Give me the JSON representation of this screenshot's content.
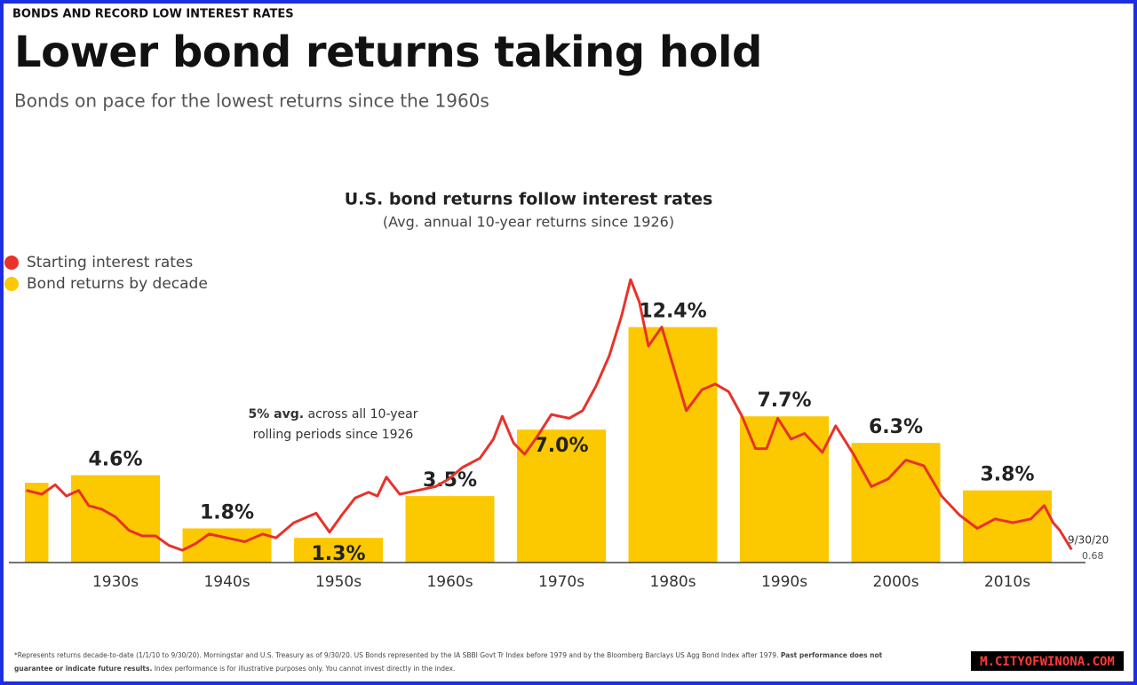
{
  "page": {
    "kicker": "BONDS AND RECORD LOW INTEREST RATES",
    "title": "Lower bond returns taking hold",
    "subtitle": "Bonds on pace for the lowest returns since the 1960s",
    "footnote": [
      "*Represents returns decade-to-date (1/1/10 to 9/30/20).  Morningstar and U.S. Treasury as of 9/30/20. US Bonds represented by the IA SBBI Govt Tr Index before 1979 and by the Bloomberg Barclays US Agg Bond Index after 1979.",
      "Past performance does not",
      "guarantee or indicate future results.",
      "Index performance is for illustrative purposes only. You cannot invest directly in the index."
    ],
    "watermark": "M.CITYOFWINONA.COM"
  },
  "chart_data": [
    {
      "type": "bar",
      "title": "U.S. bond returns follow interest rates",
      "subtitle": "(Avg. annual 10-year returns since 1926)",
      "categories": [
        null,
        "1930s",
        "1940s",
        "1950s",
        "1960s",
        "1970s",
        "1980s",
        "1990s",
        "2000s",
        "2010s"
      ],
      "series": [
        {
          "name": "Bond returns by decade",
          "color": "#fcc800",
          "values": [
            4.2,
            4.6,
            1.8,
            1.3,
            3.5,
            7.0,
            12.4,
            7.7,
            6.3,
            3.8
          ],
          "value_labels": [
            null,
            "4.6%",
            "1.8%",
            "1.3%",
            "3.5%",
            "7.0%",
            "12.4%",
            "7.7%",
            "6.3%",
            "3.8%"
          ]
        }
      ],
      "ylim": [
        0,
        15
      ]
    },
    {
      "type": "line",
      "x": [
        1927.0,
        1928.4,
        1929.6,
        1930.6,
        1931.7,
        1932.6,
        1933.8,
        1935.0,
        1936.2,
        1937.4,
        1938.6,
        1939.8,
        1941.0,
        1942.2,
        1943.4,
        1945.0,
        1946.6,
        1948.2,
        1949.4,
        1951.0,
        1953.0,
        1954.2,
        1955.3,
        1956.5,
        1957.7,
        1958.5,
        1959.3,
        1960.5,
        1962.1,
        1963.7,
        1964.9,
        1966.1,
        1967.7,
        1968.9,
        1969.7,
        1970.7,
        1971.7,
        1972.9,
        1974.1,
        1975.7,
        1976.9,
        1978.1,
        1979.3,
        1980.4,
        1981.2,
        1982.0,
        1982.8,
        1984.0,
        1985.1,
        1986.2,
        1987.6,
        1988.8,
        1990.0,
        1991.2,
        1992.4,
        1993.4,
        1994.4,
        1995.6,
        1996.8,
        1998.4,
        1999.6,
        2001.2,
        2002.8,
        2004.3,
        2005.9,
        2007.5,
        2009.1,
        2010.7,
        2012.3,
        2013.9,
        2015.5,
        2017.1,
        2018.3,
        2019.1,
        2019.7,
        2020.75
      ],
      "series": [
        {
          "name": "Starting interest rates",
          "color": "#e8322a",
          "values": [
            3.8,
            3.6,
            4.1,
            3.5,
            3.8,
            3.0,
            2.8,
            2.4,
            1.7,
            1.4,
            1.4,
            0.9,
            0.65,
            1.0,
            1.5,
            1.3,
            1.1,
            1.5,
            1.3,
            2.1,
            2.6,
            1.6,
            2.5,
            3.4,
            3.7,
            3.5,
            4.5,
            3.6,
            3.8,
            4.0,
            4.4,
            5.0,
            5.5,
            6.5,
            7.7,
            6.3,
            5.7,
            6.7,
            7.8,
            7.6,
            8.0,
            9.3,
            10.9,
            13.0,
            14.9,
            13.7,
            11.4,
            12.4,
            10.2,
            8.0,
            9.1,
            9.4,
            9.0,
            7.7,
            6.0,
            6.0,
            7.6,
            6.5,
            6.8,
            5.8,
            7.2,
            5.7,
            4.0,
            4.4,
            5.4,
            5.1,
            3.5,
            2.5,
            1.8,
            2.3,
            2.1,
            2.3,
            3.0,
            2.1,
            1.7,
            0.68
          ]
        }
      ],
      "xlim": [
        1926,
        2022
      ],
      "ylim": [
        0,
        15
      ],
      "annotation": [
        "5% avg.",
        "across all 10-year",
        "rolling periods since 1926"
      ],
      "end_label": "9/30/20"
    }
  ]
}
